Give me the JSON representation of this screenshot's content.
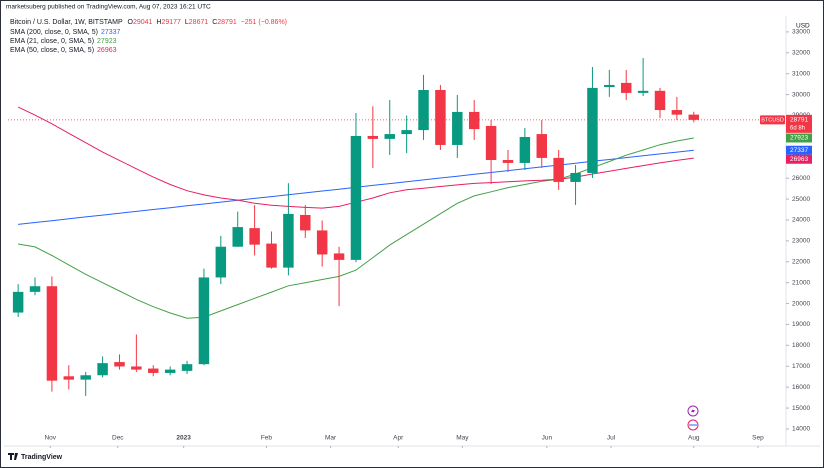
{
  "chart_data": {
    "type": "candlestick",
    "publisher": "marketsuberg published on TradingView.com, Aug 07, 2023 16:21 UTC",
    "title": "Bitcoin / U.S. Dollar, 1W, BITSTAMP",
    "ohlc_labels": [
      "O",
      "H",
      "L",
      "C"
    ],
    "change": "−251 (−0.86%)",
    "currency": "USD",
    "symbol": "BTCUSD",
    "countdown": "6d 8h",
    "brand": "TradingView",
    "up_color": "#089981",
    "down_color": "#f23645",
    "open": [
      19570,
      20560,
      20830,
      16520,
      16360,
      16570,
      17200,
      16990,
      16890,
      16680,
      16780,
      17100,
      21250,
      22720,
      23610,
      22870,
      21720,
      24240,
      23500,
      22400,
      22090,
      28020,
      27880,
      28110,
      28300,
      30220,
      27590,
      29170,
      28500,
      26870,
      26730,
      28110,
      26970,
      25820,
      26250,
      30360,
      30560,
      30080,
      30180,
      29260,
      29041
    ],
    "high": [
      20930,
      21250,
      21300,
      17050,
      16730,
      17470,
      17570,
      18520,
      17050,
      16990,
      17260,
      21670,
      23240,
      24400,
      24710,
      23450,
      25760,
      24710,
      23980,
      22720,
      29120,
      29440,
      29740,
      29000,
      30940,
      30460,
      29980,
      29740,
      28780,
      27350,
      28400,
      28780,
      27350,
      26630,
      31320,
      31180,
      31180,
      31750,
      30320,
      29890,
      29177
    ],
    "low": [
      19360,
      20400,
      15790,
      15890,
      15580,
      16470,
      16840,
      16730,
      16520,
      16570,
      16630,
      17050,
      20930,
      22720,
      22300,
      21670,
      21350,
      23140,
      21770,
      19880,
      21980,
      26490,
      27110,
      27200,
      27830,
      27350,
      26970,
      27830,
      25720,
      26300,
      26390,
      26490,
      25440,
      24720,
      26010,
      29890,
      29740,
      29930,
      28880,
      28780,
      28671
    ],
    "close": [
      20560,
      20830,
      16310,
      16360,
      16570,
      17150,
      16990,
      16840,
      16680,
      16840,
      17100,
      21250,
      22720,
      23660,
      22820,
      21720,
      24290,
      23500,
      22350,
      22090,
      28020,
      27880,
      28110,
      28300,
      30220,
      27590,
      29170,
      28350,
      26870,
      26730,
      27970,
      26970,
      25820,
      26250,
      30320,
      30460,
      30080,
      30180,
      29260,
      29040,
      28791
    ],
    "series": [
      {
        "name": "SMA (200, close, 0, SMA, 5)",
        "color": "#2962ff",
        "values": [
          23790,
          23879,
          23967,
          24056,
          24145,
          24234,
          24322,
          24411,
          24500,
          24588,
          24677,
          24766,
          24854,
          24943,
          25032,
          25121,
          25209,
          25298,
          25387,
          25475,
          25564,
          25653,
          25741,
          25830,
          25919,
          26008,
          26096,
          26185,
          26274,
          26362,
          26451,
          26540,
          26628,
          26717,
          26806,
          26895,
          26983,
          27072,
          27161,
          27249,
          27337
        ]
      },
      {
        "name": "EMA (21, close, 0, SMA, 5)",
        "color": "#43a047",
        "values": [
          22850,
          22710,
          22300,
          21850,
          21400,
          21000,
          20600,
          20200,
          19850,
          19550,
          19300,
          19350,
          19650,
          19950,
          20250,
          20550,
          20850,
          21000,
          21150,
          21300,
          21600,
          22200,
          22800,
          23300,
          23800,
          24300,
          24800,
          25150,
          25350,
          25550,
          25700,
          25850,
          25950,
          26200,
          26500,
          26800,
          27100,
          27350,
          27600,
          27780,
          27923
        ]
      },
      {
        "name": "EMA (50, close, 0, SMA, 5)",
        "color": "#e91e63",
        "values": [
          29400,
          29020,
          28600,
          28150,
          27700,
          27250,
          26850,
          26450,
          26050,
          25700,
          25400,
          25200,
          25050,
          24950,
          24800,
          24700,
          24650,
          24600,
          24570,
          24650,
          24850,
          25050,
          25300,
          25450,
          25520,
          25600,
          25680,
          25750,
          25790,
          25830,
          25870,
          25900,
          25950,
          26050,
          26200,
          26330,
          26470,
          26600,
          26730,
          26850,
          26963
        ]
      }
    ],
    "xlim": [
      -0.6,
      45.4
    ],
    "xticks": [
      {
        "value": 1.9,
        "label": "Nov"
      },
      {
        "value": 5.9,
        "label": "Dec"
      },
      {
        "value": 9.8,
        "label": "2023"
      },
      {
        "value": 14.7,
        "label": "Feb"
      },
      {
        "value": 18.5,
        "label": "Mar"
      },
      {
        "value": 22.5,
        "label": "Apr"
      },
      {
        "value": 26.3,
        "label": "May"
      },
      {
        "value": 31.3,
        "label": "Jun"
      },
      {
        "value": 35.1,
        "label": "Jul"
      },
      {
        "value": 40,
        "label": "Aug"
      },
      {
        "value": 43.8,
        "label": "Sep"
      }
    ],
    "ylim": [
      13950,
      33665
    ],
    "yticks": [
      14000,
      15000,
      16000,
      17000,
      18000,
      19000,
      20000,
      21000,
      22000,
      23000,
      24000,
      25000,
      26000,
      27000,
      28000,
      29000,
      30000,
      31000,
      32000,
      33000
    ],
    "grid": false
  }
}
